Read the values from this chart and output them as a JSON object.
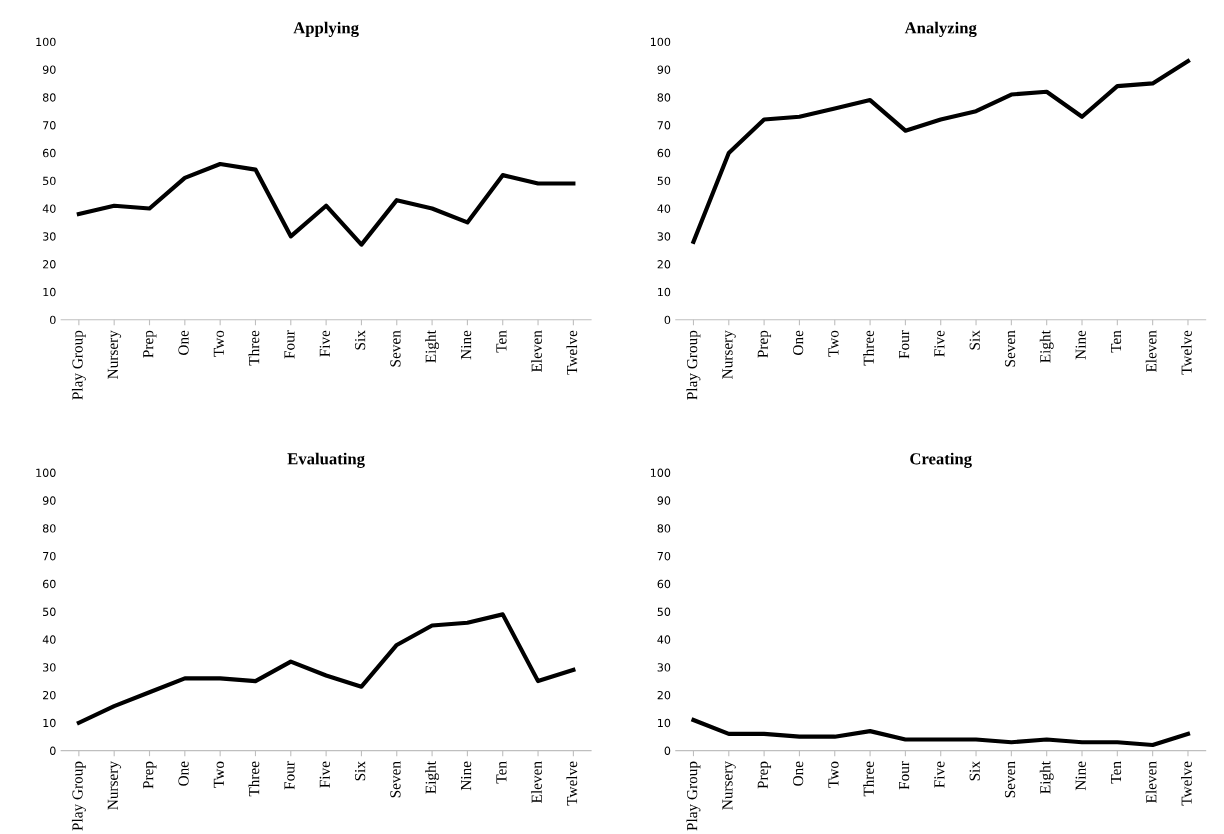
{
  "chart_data": [
    {
      "type": "line",
      "title": "Applying",
      "categories": [
        "Play Group",
        "Nursery",
        "Prep",
        "One",
        "Two",
        "Three",
        "Four",
        "Five",
        "Six",
        "Seven",
        "Eight",
        "Nine",
        "Ten",
        "Eleven",
        "Twelve"
      ],
      "series": [
        {
          "color": "#000000",
          "values": [
            38,
            41,
            40,
            51,
            56,
            54,
            30,
            41,
            27,
            43,
            40,
            35,
            52,
            49,
            49
          ]
        }
      ],
      "ylim": [
        0,
        100
      ],
      "yticks": [
        0,
        10,
        20,
        30,
        40,
        50,
        60,
        70,
        80,
        90,
        100
      ],
      "grid": false,
      "marker": "none",
      "line_style": "solid"
    },
    {
      "type": "line",
      "title": "Analyzing",
      "categories": [
        "Play Group",
        "Nursery",
        "Prep",
        "One",
        "Two",
        "Three",
        "Four",
        "Five",
        "Six",
        "Seven",
        "Eight",
        "Nine",
        "Ten",
        "Eleven",
        "Twelve"
      ],
      "series": [
        {
          "color": "#000000",
          "values": [
            28,
            60,
            72,
            73,
            76,
            79,
            68,
            72,
            75,
            81,
            82,
            73,
            84,
            85,
            93
          ]
        }
      ],
      "ylim": [
        0,
        100
      ],
      "yticks": [
        0,
        10,
        20,
        30,
        40,
        50,
        60,
        70,
        80,
        90,
        100
      ],
      "grid": false,
      "marker": "none",
      "line_style": "solid"
    },
    {
      "type": "line",
      "title": "Evaluating",
      "categories": [
        "Play Group",
        "Nursery",
        "Prep",
        "One",
        "Two",
        "Three",
        "Four",
        "Five",
        "Six",
        "Seven",
        "Eight",
        "Nine",
        "Ten",
        "Eleven",
        "Twelve"
      ],
      "series": [
        {
          "color": "#000000",
          "values": [
            10,
            16,
            21,
            26,
            26,
            25,
            32,
            27,
            23,
            38,
            45,
            46,
            49,
            25,
            29
          ]
        }
      ],
      "ylim": [
        0,
        100
      ],
      "yticks": [
        0,
        10,
        20,
        30,
        40,
        50,
        60,
        70,
        80,
        90,
        100
      ],
      "grid": false,
      "marker": "none",
      "line_style": "solid"
    },
    {
      "type": "line",
      "title": "Creating",
      "categories": [
        "Play Group",
        "Nursery",
        "Prep",
        "One",
        "Two",
        "Three",
        "Four",
        "Five",
        "Six",
        "Seven",
        "Eight",
        "Nine",
        "Ten",
        "Eleven",
        "Twelve"
      ],
      "series": [
        {
          "color": "#000000",
          "values": [
            11,
            6,
            6,
            5,
            5,
            7,
            4,
            4,
            4,
            3,
            4,
            3,
            3,
            2,
            6
          ]
        }
      ],
      "ylim": [
        0,
        100
      ],
      "yticks": [
        0,
        10,
        20,
        30,
        40,
        50,
        60,
        70,
        80,
        90,
        100
      ],
      "grid": false,
      "marker": "none",
      "line_style": "solid"
    }
  ]
}
